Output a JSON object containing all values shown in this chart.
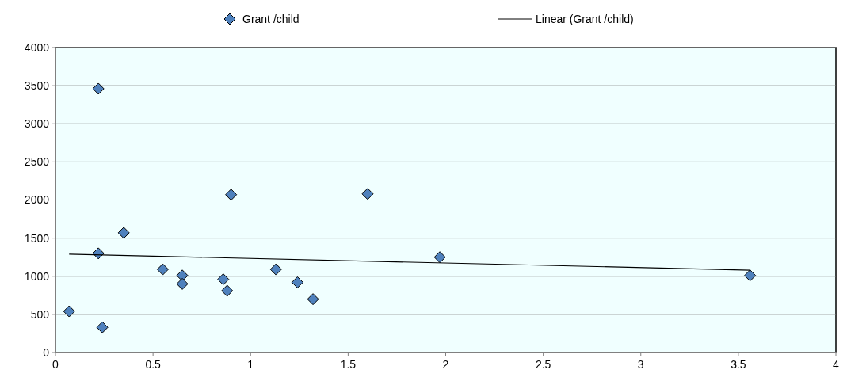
{
  "chart_data": {
    "type": "scatter",
    "xlim": [
      0,
      4
    ],
    "xticks": [
      0,
      0.5,
      1,
      1.5,
      2,
      2.5,
      3,
      3.5,
      4
    ],
    "ylim": [
      0,
      4000
    ],
    "yticks": [
      0,
      500,
      1000,
      1500,
      2000,
      2500,
      3000,
      3500,
      4000
    ],
    "grid": "y",
    "legend": "top",
    "series": [
      {
        "name": "Grant /child",
        "marker": "diamond",
        "color": "#4f81bd",
        "x": [
          0.07,
          0.22,
          0.22,
          0.24,
          0.35,
          0.55,
          0.65,
          0.65,
          0.86,
          0.88,
          0.9,
          1.13,
          1.24,
          1.32,
          1.6,
          1.97,
          3.56
        ],
        "values": [
          540,
          3460,
          1300,
          330,
          1570,
          1090,
          1010,
          900,
          960,
          810,
          2070,
          1090,
          920,
          700,
          2080,
          1250,
          1010
        ]
      },
      {
        "name": "Linear (Grant /child)",
        "type": "line",
        "marker": "none",
        "color": "#000000",
        "x": [
          0.07,
          3.56
        ],
        "values": [
          1290,
          1080
        ]
      }
    ]
  }
}
